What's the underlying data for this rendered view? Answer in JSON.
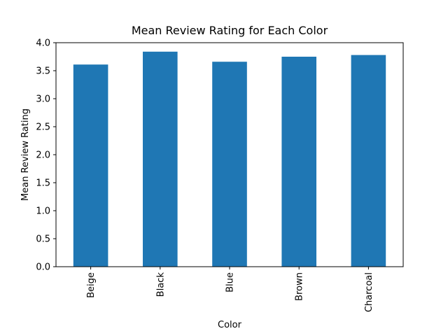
{
  "chart_data": {
    "type": "bar",
    "title": "Mean Review Rating for Each Color",
    "xlabel": "Color",
    "ylabel": "Mean Review Rating",
    "categories": [
      "Beige",
      "Black",
      "Blue",
      "Brown",
      "Charcoal"
    ],
    "values": [
      3.61,
      3.84,
      3.66,
      3.75,
      3.78
    ],
    "ylim": [
      0,
      4.0
    ],
    "yticks": [
      "0.0",
      "0.5",
      "1.0",
      "1.5",
      "2.0",
      "2.5",
      "3.0",
      "3.5",
      "4.0"
    ],
    "grid": false,
    "legend": "none",
    "bar_color": "#1f77b4",
    "tick_label_rotation": "vertical"
  }
}
